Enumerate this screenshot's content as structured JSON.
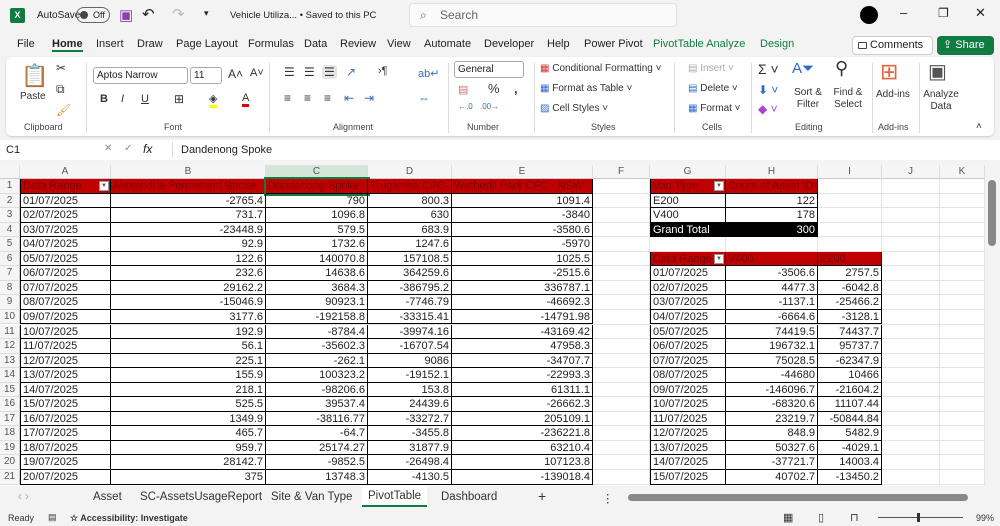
{
  "title_bar": {
    "autosave_label": "AutoSave",
    "autosave_state": "Off",
    "doc_title": "Vehicle Utiliza... • Saved to this PC",
    "search_placeholder": "Search"
  },
  "menu": {
    "tabs": [
      "File",
      "Home",
      "Insert",
      "Draw",
      "Page Layout",
      "Formulas",
      "Data",
      "Review",
      "View",
      "Automate",
      "Developer",
      "Help",
      "Power Pivot",
      "PivotTable Analyze",
      "Design"
    ],
    "active": "Home",
    "comments": "Comments",
    "share": "Share"
  },
  "ribbon": {
    "paste": "Paste",
    "font_name": "Aptos Narrow",
    "font_size": "11",
    "number_format": "General",
    "conditional_formatting": "Conditional Formatting",
    "format_as_table": "Format as Table",
    "cell_styles": "Cell Styles",
    "insert": "Insert",
    "delete": "Delete",
    "format": "Format",
    "sort_filter": "Sort & Filter",
    "find_select": "Find & Select",
    "add_ins": "Add-ins",
    "analyze_data": "Analyze Data",
    "groups": [
      "Clipboard",
      "Font",
      "Alignment",
      "Number",
      "Styles",
      "Cells",
      "Editing",
      "Add-ins"
    ]
  },
  "formula_bar": {
    "name_box": "C1",
    "fx": "fx",
    "content": "Dandenong Spoke"
  },
  "columns": [
    "A",
    "B",
    "C",
    "D",
    "E",
    "F",
    "G",
    "H",
    "I",
    "J",
    "K"
  ],
  "main_table": {
    "headers": [
      "Data Range",
      "Alexandria Permanent Spoke",
      "Dandenong Spoke",
      "Truganina CFC",
      "Wetherill Park CFC - NSW"
    ],
    "rows": [
      [
        "01/07/2025",
        "-2765.4",
        "790",
        "800.3",
        "1091.4"
      ],
      [
        "02/07/2025",
        "731.7",
        "1096.8",
        "630",
        "-3840"
      ],
      [
        "03/07/2025",
        "-23448.9",
        "579.5",
        "683.9",
        "-3580.6"
      ],
      [
        "04/07/2025",
        "92.9",
        "1732.6",
        "1247.6",
        "-5970"
      ],
      [
        "05/07/2025",
        "122.6",
        "140070.8",
        "157108.5",
        "1025.5"
      ],
      [
        "06/07/2025",
        "232.6",
        "14638.6",
        "364259.6",
        "-2515.6"
      ],
      [
        "07/07/2025",
        "29162.2",
        "3684.3",
        "-386795.2",
        "336787.1"
      ],
      [
        "08/07/2025",
        "-15046.9",
        "90923.1",
        "-7746.79",
        "-46692.3"
      ],
      [
        "09/07/2025",
        "3177.6",
        "-192158.8",
        "-33315.41",
        "-14791.98"
      ],
      [
        "10/07/2025",
        "192.9",
        "-8784.4",
        "-39974.16",
        "-43169.42"
      ],
      [
        "11/07/2025",
        "56.1",
        "-35602.3",
        "-16707.54",
        "47958.3"
      ],
      [
        "12/07/2025",
        "225.1",
        "-262.1",
        "9086",
        "-34707.7"
      ],
      [
        "13/07/2025",
        "155.9",
        "100323.2",
        "-19152.1",
        "-22993.3"
      ],
      [
        "14/07/2025",
        "218.1",
        "-98206.6",
        "153.8",
        "61311.1"
      ],
      [
        "15/07/2025",
        "525.5",
        "39537.4",
        "24439.6",
        "-26662.3"
      ],
      [
        "16/07/2025",
        "1349.9",
        "-38116.77",
        "-33272.7",
        "205109.1"
      ],
      [
        "17/07/2025",
        "465.7",
        "-64.7",
        "-3455.8",
        "-236221.8"
      ],
      [
        "18/07/2025",
        "959.7",
        "25174.27",
        "31877.9",
        "63210.4"
      ],
      [
        "19/07/2025",
        "28142.7",
        "-9852.5",
        "-26498.4",
        "107123.8"
      ],
      [
        "20/07/2025",
        "375",
        "13748.3",
        "-4130.5",
        "-139018.4"
      ]
    ]
  },
  "van_pivot": {
    "headers": [
      "Van Type",
      "Count of Asset ID"
    ],
    "rows": [
      [
        "E200",
        "122"
      ],
      [
        "V400",
        "178"
      ]
    ],
    "total": [
      "Grand Total",
      "300"
    ]
  },
  "van_date_pivot": {
    "headers": [
      "Data Range",
      "V400",
      "E200"
    ],
    "rows": [
      [
        "01/07/2025",
        "-3506.6",
        "2757.5"
      ],
      [
        "02/07/2025",
        "4477.3",
        "-6042.8"
      ],
      [
        "03/07/2025",
        "-1137.1",
        "-25466.2"
      ],
      [
        "04/07/2025",
        "-6664.6",
        "-3128.1"
      ],
      [
        "05/07/2025",
        "74419.5",
        "74437.7"
      ],
      [
        "06/07/2025",
        "196732.1",
        "95737.7"
      ],
      [
        "07/07/2025",
        "75028.5",
        "-62347.9"
      ],
      [
        "08/07/2025",
        "-44680",
        "10466"
      ],
      [
        "09/07/2025",
        "-146096.7",
        "-21604.2"
      ],
      [
        "10/07/2025",
        "-68320.6",
        "11107.44"
      ],
      [
        "11/07/2025",
        "23219.7",
        "-50844.84"
      ],
      [
        "12/07/2025",
        "848.9",
        "5482.9"
      ],
      [
        "13/07/2025",
        "50327.6",
        "-4029.1"
      ],
      [
        "14/07/2025",
        "-37721.7",
        "14003.4"
      ],
      [
        "15/07/2025",
        "40702.7",
        "-13450.2"
      ]
    ]
  },
  "sheet_tabs": [
    "Asset",
    "SC-AssetsUsageReport",
    "Site & Van Type",
    "PivotTable",
    "Dashboard"
  ],
  "active_sheet": "PivotTable",
  "status": {
    "ready": "Ready",
    "accessibility": "Accessibility: Investigate",
    "zoom": "99%"
  },
  "colors": {
    "header_fill": "#c00000",
    "accent": "#107c41",
    "total_fill": "#000000"
  }
}
